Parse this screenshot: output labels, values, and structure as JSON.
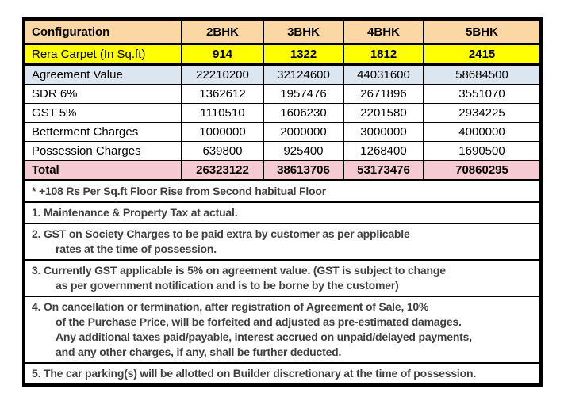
{
  "colors": {
    "header_bg": "#FBD8A3",
    "rera_carpet_bg": "#FFFF00",
    "agreement_bg": "#DCE6F1",
    "total_bg": "#F6CAD3",
    "border": "#000000",
    "table_text": "#000000",
    "note_text": "#3F3F3F"
  },
  "table": {
    "header": {
      "label": "Configuration",
      "cols": [
        "2BHK",
        "3BHK",
        "4BHK",
        "5BHK"
      ]
    },
    "rows": [
      {
        "label": "Rera Carpet (In Sq.ft)",
        "values": [
          "914",
          "1322",
          "1812",
          "2415"
        ]
      },
      {
        "label": "Agreement Value",
        "values": [
          "22210200",
          "32124600",
          "44031600",
          "58684500"
        ]
      },
      {
        "label": "SDR 6%",
        "values": [
          "1362612",
          "1957476",
          "2671896",
          "3551070"
        ]
      },
      {
        "label": "GST 5%",
        "values": [
          "1110510",
          "1606230",
          "2201580",
          "2934225"
        ]
      },
      {
        "label": "Betterment Charges",
        "values": [
          "1000000",
          "2000000",
          "3000000",
          "4000000"
        ]
      },
      {
        "label": "Possession Charges",
        "values": [
          "639800",
          "925400",
          "1268400",
          "1690500"
        ]
      },
      {
        "label": "Total",
        "values": [
          "26323122",
          "38613706",
          "53173476",
          "70860295"
        ]
      }
    ]
  },
  "notes": {
    "floor_rise": "* +108 Rs Per Sq.ft Floor Rise from Second habitual Floor",
    "n1": "1. Maintenance & Property Tax at actual.",
    "n2a": "2. GST on Society Charges to be paid extra by customer as per applicable",
    "n2b": "rates at the time of possession.",
    "n3a": "3. Currently GST applicable is 5% on agreement value. (GST is subject to change",
    "n3b": "as per government notification and is to be borne by the customer)",
    "n4a": "4. On cancellation or termination, after registration of Agreement of Sale, 10%",
    "n4b": "of the Purchase Price, will be forfeited and adjusted as pre-estimated damages.",
    "n4c": "Any additional taxes paid/payable, interest accrued on unpaid/delayed payments,",
    "n4d": "and any other charges, if any, shall be further deducted.",
    "n5": "5. The car parking(s) will be allotted on Builder discretionary at the time of possession."
  }
}
